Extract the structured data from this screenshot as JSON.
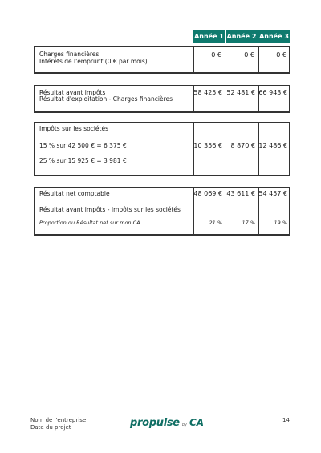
{
  "years": [
    "Année 1",
    "Année 2",
    "Année 3"
  ],
  "charges": {
    "title": "Charges financières",
    "subtitle": "Intérêts de l'emprunt (0 € par mois)",
    "values": [
      "0 €",
      "0 €",
      "0 €"
    ]
  },
  "resultat_avant": {
    "title": "Résultat avant impôts",
    "subtitle": "Résultat d'exploitation - Charges financières",
    "values": [
      "58 425 €",
      "52 481 €",
      "66 943 €"
    ]
  },
  "impots": {
    "title": "Impôts sur les sociétés",
    "line1": "15 % sur 42 500 € = 6 375 €",
    "line2": "25 % sur 15 925 € = 3 981 €",
    "values": [
      "10 356 €",
      "8 870 €",
      "12 486 €"
    ]
  },
  "resultat_net": {
    "title": "Résultat net comptable",
    "subtitle": "Résultat avant impôts - Impôts sur les sociétés",
    "proportion_label": "Proportion du Résultat net sur mon CA",
    "values": [
      "48 069 €",
      "43 611 €",
      "54 457 €"
    ],
    "proportions": [
      "21 %",
      "17 %",
      "19 %"
    ]
  },
  "footer": {
    "company": "Nom de l'entreprise",
    "date": "Date du projet",
    "page": "14",
    "logo_main": "propulse",
    "logo_by": "by",
    "logo_ca": "CA"
  }
}
